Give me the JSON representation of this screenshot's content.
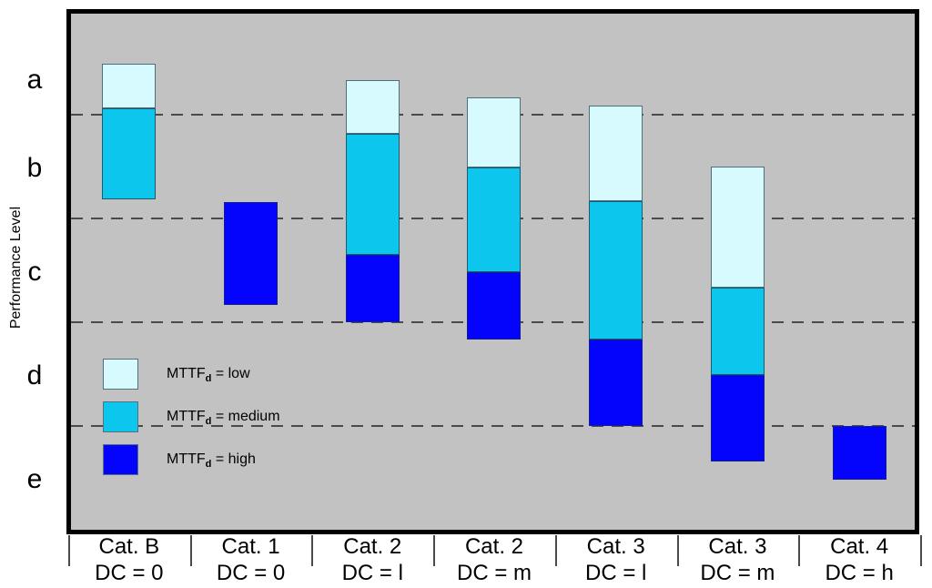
{
  "figure": {
    "background": "#ffffff",
    "plot_background": "#c2c2c2",
    "plot_border_color": "#000000"
  },
  "chart_data": {
    "type": "bar",
    "variant": "floating-stacked-columns",
    "title": "",
    "xlabel": "",
    "ylabel": "Performance Level",
    "y_axis": {
      "labels": [
        "a",
        "b",
        "c",
        "d",
        "e"
      ],
      "direction": "top-to-bottom",
      "bands": 5,
      "band_units": [
        0,
        5
      ],
      "gridline_style": "dashed",
      "grid_on": true
    },
    "categories": [
      {
        "cat": "Cat. B",
        "dc": "DC = 0"
      },
      {
        "cat": "Cat. 1",
        "dc": "DC = 0"
      },
      {
        "cat": "Cat. 2",
        "dc": "DC = l"
      },
      {
        "cat": "Cat. 2",
        "dc": "DC = m"
      },
      {
        "cat": "Cat. 3",
        "dc": "DC = l"
      },
      {
        "cat": "Cat. 3",
        "dc": "DC = m"
      },
      {
        "cat": "Cat. 4",
        "dc": "DC = h"
      }
    ],
    "unit_note": "segment from/to are in performance-level band units: 0 = top of band a, 5 = bottom of band e; gridlines sit at 1,2,3,4",
    "bars": [
      {
        "category": "Cat. B / DC = 0",
        "segments": [
          {
            "mttfd": "low",
            "from": 0.51,
            "to": 0.94
          },
          {
            "mttfd": "medium",
            "from": 0.94,
            "to": 1.82
          }
        ]
      },
      {
        "category": "Cat. 1 / DC = 0",
        "segments": [
          {
            "mttfd": "high",
            "from": 1.84,
            "to": 2.83
          }
        ]
      },
      {
        "category": "Cat. 2 / DC = l",
        "segments": [
          {
            "mttfd": "low",
            "from": 0.67,
            "to": 1.18
          },
          {
            "mttfd": "medium",
            "from": 1.18,
            "to": 2.35
          },
          {
            "mttfd": "high",
            "from": 2.35,
            "to": 3.0
          }
        ]
      },
      {
        "category": "Cat. 2 / DC = m",
        "segments": [
          {
            "mttfd": "low",
            "from": 0.83,
            "to": 1.51
          },
          {
            "mttfd": "medium",
            "from": 1.51,
            "to": 2.52
          },
          {
            "mttfd": "high",
            "from": 2.52,
            "to": 3.17
          }
        ]
      },
      {
        "category": "Cat. 3 / DC = l",
        "segments": [
          {
            "mttfd": "low",
            "from": 0.91,
            "to": 1.83
          },
          {
            "mttfd": "medium",
            "from": 1.83,
            "to": 3.17
          },
          {
            "mttfd": "high",
            "from": 3.17,
            "to": 4.0
          }
        ]
      },
      {
        "category": "Cat. 3 / DC = m",
        "segments": [
          {
            "mttfd": "low",
            "from": 1.5,
            "to": 2.67
          },
          {
            "mttfd": "medium",
            "from": 2.67,
            "to": 3.51
          },
          {
            "mttfd": "high",
            "from": 3.51,
            "to": 4.34
          }
        ]
      },
      {
        "category": "Cat. 4 / DC = h",
        "segments": [
          {
            "mttfd": "high",
            "from": 4.0,
            "to": 4.52
          }
        ]
      }
    ],
    "legend": {
      "position": "inside-lower-left",
      "items": [
        {
          "key": "low",
          "prefix": "MTTF",
          "sub": "d",
          "suffix": " = low",
          "color": "#d6fafd"
        },
        {
          "key": "medium",
          "prefix": "MTTF",
          "sub": "d",
          "suffix": " = medium",
          "color": "#0cc6ee"
        },
        {
          "key": "high",
          "prefix": "MTTF",
          "sub": "d",
          "suffix": " = high",
          "color": "#0404fc"
        }
      ]
    },
    "colors": {
      "low": "#d6fafd",
      "low_border": "#4f6e77",
      "medium": "#0cc6ee",
      "medium_border": "#1d5a6e",
      "high": "#0404fc",
      "high_border": "#131f8c",
      "plot_bg": "#c2c2c2",
      "grid": "#4a4a4a"
    }
  }
}
